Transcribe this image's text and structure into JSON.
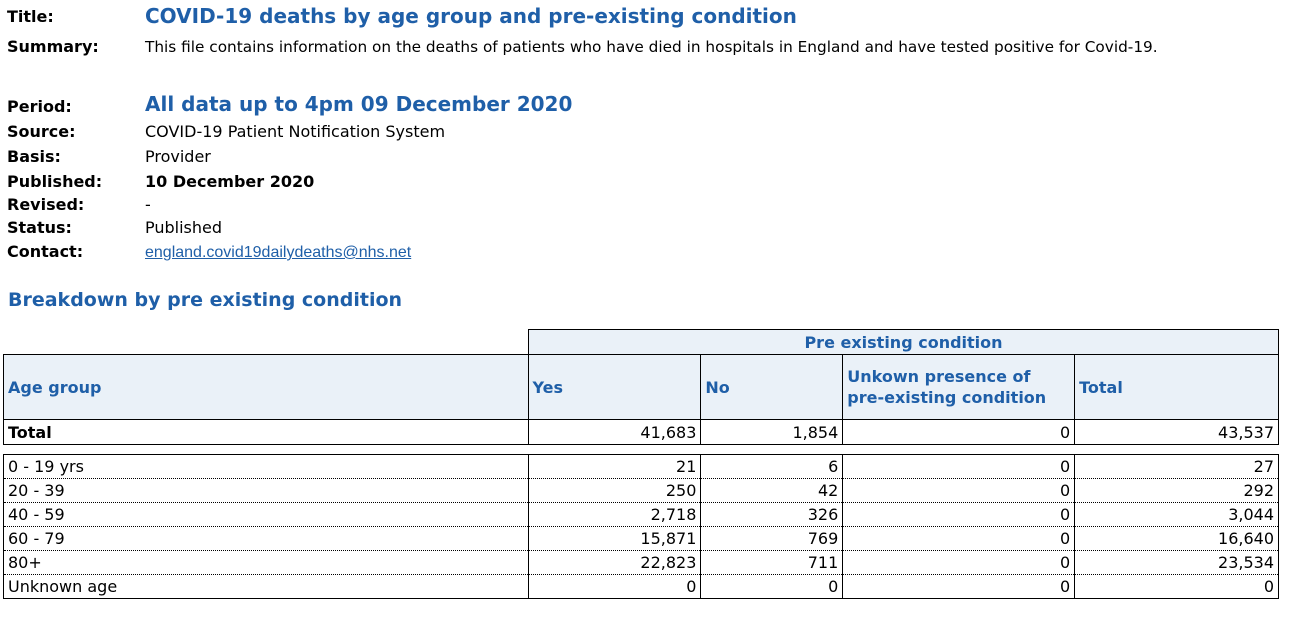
{
  "meta": {
    "title_label": "Title:",
    "title": "COVID-19 deaths by age group and pre-existing condition",
    "summary_label": "Summary:",
    "summary": "This file contains information on the deaths of patients who have died in hospitals in England and have tested positive for Covid-19.",
    "period_label": "Period:",
    "period": "All data up to 4pm 09 December 2020",
    "source_label": "Source:",
    "source": "COVID-19 Patient Notification System",
    "basis_label": "Basis:",
    "basis": "Provider",
    "published_label": "Published:",
    "published": "10 December 2020",
    "revised_label": "Revised:",
    "revised": "-",
    "status_label": "Status:",
    "status": "Published",
    "contact_label": "Contact:",
    "contact": "england.covid19dailydeaths@nhs.net"
  },
  "section_title": "Breakdown by pre existing condition",
  "table": {
    "super_header": "Pre existing condition",
    "headers": [
      "Age group",
      "Yes",
      "No",
      "Unkown presence of pre-existing condition",
      "Total"
    ],
    "total_row": [
      "Total",
      "41,683",
      "1,854",
      "0",
      "43,537"
    ],
    "rows": [
      [
        "0 - 19 yrs",
        "21",
        "6",
        "0",
        "27"
      ],
      [
        "20 - 39",
        "250",
        "42",
        "0",
        "292"
      ],
      [
        "40 - 59",
        "2,718",
        "326",
        "0",
        "3,044"
      ],
      [
        "60 - 79",
        "15,871",
        "769",
        "0",
        "16,640"
      ],
      [
        "80+",
        "22,823",
        "711",
        "0",
        "23,534"
      ],
      [
        "Unknown age",
        "0",
        "0",
        "0",
        "0"
      ]
    ]
  }
}
